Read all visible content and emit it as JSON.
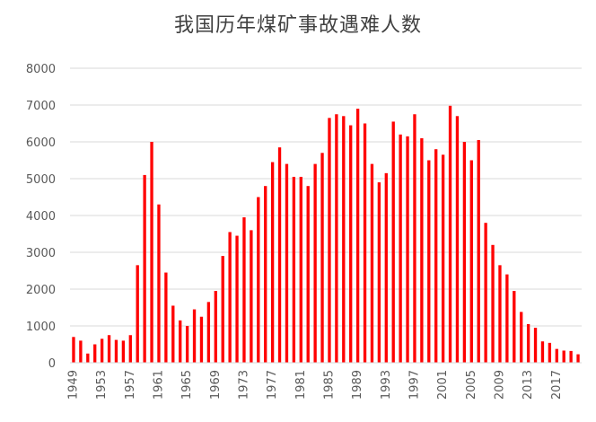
{
  "chart_data": {
    "type": "bar",
    "title": "我国历年煤矿事故遇难人数",
    "xlabel": "",
    "ylabel": "",
    "ylim": [
      0,
      8000
    ],
    "yticks": [
      0,
      1000,
      2000,
      3000,
      4000,
      5000,
      6000,
      7000,
      8000
    ],
    "grid": true,
    "legend": "none",
    "bar_color": "#ff0000",
    "grid_color": "#d9d9d9",
    "xtick_labels": [
      "1949",
      "1953",
      "1957",
      "1961",
      "1965",
      "1969",
      "1973",
      "1977",
      "1981",
      "1985",
      "1989",
      "1993",
      "1997",
      "2001",
      "2005",
      "2009",
      "2013",
      "2017"
    ],
    "categories": [
      "1949",
      "1950",
      "1951",
      "1952",
      "1953",
      "1954",
      "1955",
      "1956",
      "1957",
      "1958",
      "1959",
      "1960",
      "1961",
      "1962",
      "1963",
      "1964",
      "1965",
      "1966",
      "1967",
      "1968",
      "1969",
      "1970",
      "1971",
      "1972",
      "1973",
      "1974",
      "1975",
      "1976",
      "1977",
      "1978",
      "1979",
      "1980",
      "1981",
      "1982",
      "1983",
      "1984",
      "1985",
      "1986",
      "1987",
      "1988",
      "1989",
      "1990",
      "1991",
      "1992",
      "1993",
      "1994",
      "1995",
      "1996",
      "1997",
      "1998",
      "1999",
      "2000",
      "2001",
      "2002",
      "2003",
      "2004",
      "2005",
      "2006",
      "2007",
      "2008",
      "2009",
      "2010",
      "2011",
      "2012",
      "2013",
      "2014",
      "2015",
      "2016",
      "2017",
      "2018",
      "2019",
      "2020"
    ],
    "values": [
      700,
      600,
      250,
      500,
      650,
      750,
      620,
      600,
      750,
      2650,
      5100,
      6000,
      4300,
      2450,
      1550,
      1150,
      1000,
      1450,
      1250,
      1650,
      1950,
      2900,
      3550,
      3450,
      3950,
      3600,
      4500,
      4800,
      5450,
      5850,
      5400,
      5050,
      5050,
      4800,
      5400,
      5700,
      6650,
      6750,
      6700,
      6450,
      6900,
      6500,
      5400,
      4900,
      5150,
      6550,
      6200,
      6150,
      6750,
      6100,
      5500,
      5800,
      5650,
      6980,
      6700,
      6000,
      5500,
      6050,
      3800,
      3200,
      2650,
      2400,
      1950,
      1380,
      1050,
      950,
      580,
      540,
      375,
      330,
      320,
      230
    ]
  }
}
